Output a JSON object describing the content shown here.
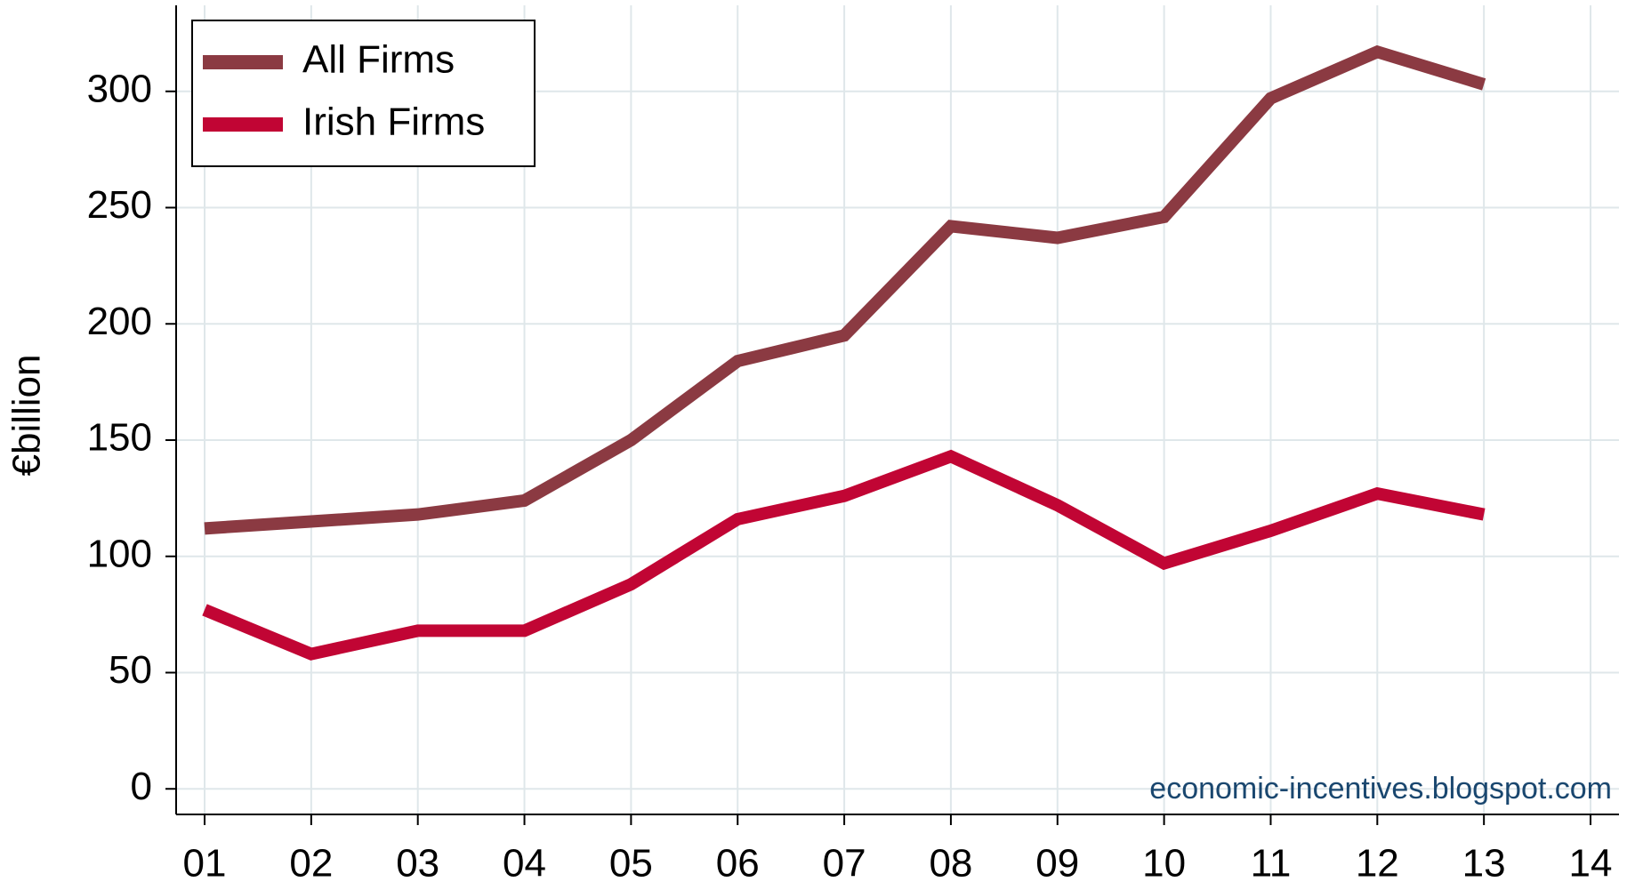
{
  "chart_data": {
    "type": "line",
    "y_label": "€billion",
    "annotation": "economic-incentives.blogspot.com",
    "categories": [
      "01",
      "02",
      "03",
      "04",
      "05",
      "06",
      "07",
      "08",
      "09",
      "10",
      "11",
      "12",
      "13",
      "14"
    ],
    "series": [
      {
        "name": "All Firms",
        "color": "#8b3a42",
        "values": [
          112,
          115,
          118,
          124,
          150,
          184,
          195,
          242,
          237,
          246,
          297,
          317,
          303,
          null
        ]
      },
      {
        "name": "Irish Firms",
        "color": "#c10534",
        "values": [
          77,
          58,
          68,
          68,
          88,
          116,
          126,
          143,
          122,
          97,
          111,
          127,
          118,
          null
        ]
      }
    ],
    "ylim": [
      -11,
      337
    ],
    "yticks": [
      0,
      50,
      100,
      150,
      200,
      250,
      300
    ],
    "grid": true,
    "legend": "top-left"
  }
}
